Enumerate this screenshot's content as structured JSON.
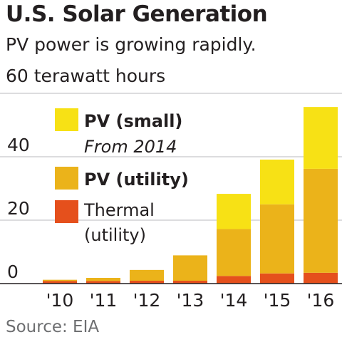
{
  "chart_data": {
    "type": "bar",
    "stacked": true,
    "title": "U.S. Solar Generation",
    "subtitle": "PV power is growing rapidly.",
    "ylabel": "60 terawatt hours",
    "source": "Source: EIA",
    "categories": [
      "'10",
      "'11",
      "'12",
      "'13",
      "'14",
      "'15",
      "'16"
    ],
    "ylim": [
      0,
      60
    ],
    "yticks": [
      "60",
      "40",
      "20",
      "0"
    ],
    "series": [
      {
        "name": "Thermal (utility)",
        "color": "#e5501c",
        "values": [
          0.8,
          0.8,
          0.9,
          0.9,
          2.4,
          3.2,
          3.4
        ]
      },
      {
        "name": "PV (utility)",
        "color": "#ebb31a",
        "values": [
          0.4,
          1.0,
          3.4,
          8.0,
          14.8,
          21.8,
          32.8
        ]
      },
      {
        "name": "PV (small)",
        "color": "#f7e115",
        "values": [
          0,
          0,
          0,
          0,
          11.1,
          14.1,
          19.5
        ]
      }
    ],
    "legend": [
      {
        "label": "PV (small)",
        "note": "From 2014",
        "color": "#f7e115"
      },
      {
        "label": "PV (utility)",
        "color": "#ebb31a"
      },
      {
        "label": "Thermal",
        "note": "(utility)",
        "color": "#e5501c"
      }
    ],
    "grid": true,
    "legend_position": "top-left"
  }
}
